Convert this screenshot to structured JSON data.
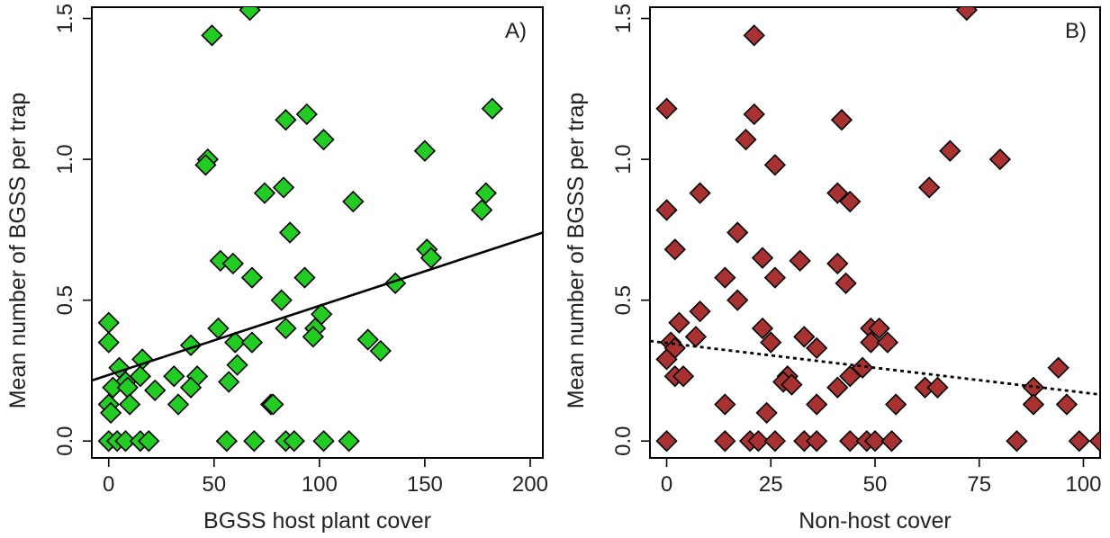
{
  "chart_data": [
    {
      "type": "scatter",
      "panel_label": "A)",
      "xlabel": "BGSS host plant cover",
      "ylabel": "Mean number of BGSS per trap",
      "xlim": [
        -8,
        206
      ],
      "ylim": [
        -0.06,
        1.54
      ],
      "xticks": [
        0,
        50,
        100,
        150,
        200
      ],
      "yticks": [
        "0.0",
        "0.5",
        "1.0",
        "1.5"
      ],
      "marker": "diamond",
      "marker_color": "#22cc22",
      "trend_line": {
        "style": "solid",
        "x": [
          -8,
          206
        ],
        "y": [
          0.215,
          0.74
        ]
      },
      "points": [
        [
          67,
          1.53
        ],
        [
          49,
          1.44
        ],
        [
          94,
          1.16
        ],
        [
          84,
          1.14
        ],
        [
          182,
          1.18
        ],
        [
          102,
          1.07
        ],
        [
          47,
          1.0
        ],
        [
          46,
          0.98
        ],
        [
          150,
          1.03
        ],
        [
          83,
          0.9
        ],
        [
          74,
          0.88
        ],
        [
          179,
          0.88
        ],
        [
          116,
          0.85
        ],
        [
          177,
          0.82
        ],
        [
          86,
          0.74
        ],
        [
          151,
          0.68
        ],
        [
          153,
          0.65
        ],
        [
          53,
          0.64
        ],
        [
          59,
          0.63
        ],
        [
          68,
          0.58
        ],
        [
          93,
          0.58
        ],
        [
          136,
          0.56
        ],
        [
          82,
          0.5
        ],
        [
          101,
          0.45
        ],
        [
          0,
          0.42
        ],
        [
          52,
          0.4
        ],
        [
          84,
          0.4
        ],
        [
          98,
          0.4
        ],
        [
          97,
          0.37
        ],
        [
          0,
          0.35
        ],
        [
          60,
          0.35
        ],
        [
          68,
          0.35
        ],
        [
          123,
          0.36
        ],
        [
          129,
          0.32
        ],
        [
          39,
          0.34
        ],
        [
          16,
          0.29
        ],
        [
          5,
          0.26
        ],
        [
          61,
          0.27
        ],
        [
          42,
          0.23
        ],
        [
          31,
          0.23
        ],
        [
          15,
          0.23
        ],
        [
          8,
          0.21
        ],
        [
          57,
          0.21
        ],
        [
          2,
          0.19
        ],
        [
          9,
          0.19
        ],
        [
          22,
          0.18
        ],
        [
          39,
          0.19
        ],
        [
          0,
          0.13
        ],
        [
          10,
          0.13
        ],
        [
          33,
          0.13
        ],
        [
          77,
          0.13
        ],
        [
          78,
          0.13
        ],
        [
          1,
          0.1
        ],
        [
          0,
          0.0
        ],
        [
          4,
          0.0
        ],
        [
          8,
          0.0
        ],
        [
          15,
          0.0
        ],
        [
          19,
          0.0
        ],
        [
          56,
          0.0
        ],
        [
          69,
          0.0
        ],
        [
          84,
          0.0
        ],
        [
          88,
          0.0
        ],
        [
          102,
          0.0
        ],
        [
          114,
          0.0
        ]
      ]
    },
    {
      "type": "scatter",
      "panel_label": "B)",
      "xlabel": "Non-host cover",
      "ylabel": "Mean number of BGSS per trap",
      "xlim": [
        -4,
        104
      ],
      "ylim": [
        -0.06,
        1.54
      ],
      "xticks": [
        0,
        25,
        50,
        75,
        100
      ],
      "yticks": [
        "0.0",
        "0.5",
        "1.0",
        "1.5"
      ],
      "marker": "diamond",
      "marker_color": "#a83232",
      "trend_line": {
        "style": "dotted",
        "x": [
          -4,
          104
        ],
        "y": [
          0.355,
          0.165
        ]
      },
      "points": [
        [
          72,
          1.53
        ],
        [
          21,
          1.44
        ],
        [
          21,
          1.16
        ],
        [
          0,
          1.18
        ],
        [
          42,
          1.14
        ],
        [
          19,
          1.07
        ],
        [
          68,
          1.03
        ],
        [
          80,
          1.0
        ],
        [
          26,
          0.98
        ],
        [
          63,
          0.9
        ],
        [
          8,
          0.88
        ],
        [
          41,
          0.88
        ],
        [
          44,
          0.85
        ],
        [
          0,
          0.82
        ],
        [
          17,
          0.74
        ],
        [
          2,
          0.68
        ],
        [
          23,
          0.65
        ],
        [
          32,
          0.64
        ],
        [
          41,
          0.63
        ],
        [
          14,
          0.58
        ],
        [
          26,
          0.58
        ],
        [
          43,
          0.56
        ],
        [
          17,
          0.5
        ],
        [
          8,
          0.46
        ],
        [
          3,
          0.42
        ],
        [
          23,
          0.4
        ],
        [
          49,
          0.4
        ],
        [
          51,
          0.4
        ],
        [
          7,
          0.37
        ],
        [
          33,
          0.37
        ],
        [
          1,
          0.35
        ],
        [
          25,
          0.35
        ],
        [
          49,
          0.35
        ],
        [
          53,
          0.35
        ],
        [
          2,
          0.33
        ],
        [
          36,
          0.33
        ],
        [
          0,
          0.29
        ],
        [
          94,
          0.26
        ],
        [
          47,
          0.26
        ],
        [
          29,
          0.23
        ],
        [
          2,
          0.23
        ],
        [
          44,
          0.23
        ],
        [
          4,
          0.23
        ],
        [
          28,
          0.21
        ],
        [
          30,
          0.2
        ],
        [
          41,
          0.19
        ],
        [
          62,
          0.19
        ],
        [
          65,
          0.19
        ],
        [
          88,
          0.19
        ],
        [
          14,
          0.13
        ],
        [
          36,
          0.13
        ],
        [
          55,
          0.13
        ],
        [
          88,
          0.13
        ],
        [
          96,
          0.13
        ],
        [
          24,
          0.1
        ],
        [
          0,
          0.0
        ],
        [
          14,
          0.0
        ],
        [
          20,
          0.0
        ],
        [
          22,
          0.0
        ],
        [
          26,
          0.0
        ],
        [
          33,
          0.0
        ],
        [
          36,
          0.0
        ],
        [
          44,
          0.0
        ],
        [
          48,
          0.0
        ],
        [
          50,
          0.0
        ],
        [
          54,
          0.0
        ],
        [
          84,
          0.0
        ],
        [
          99,
          0.0
        ],
        [
          104,
          0.0
        ]
      ]
    }
  ]
}
